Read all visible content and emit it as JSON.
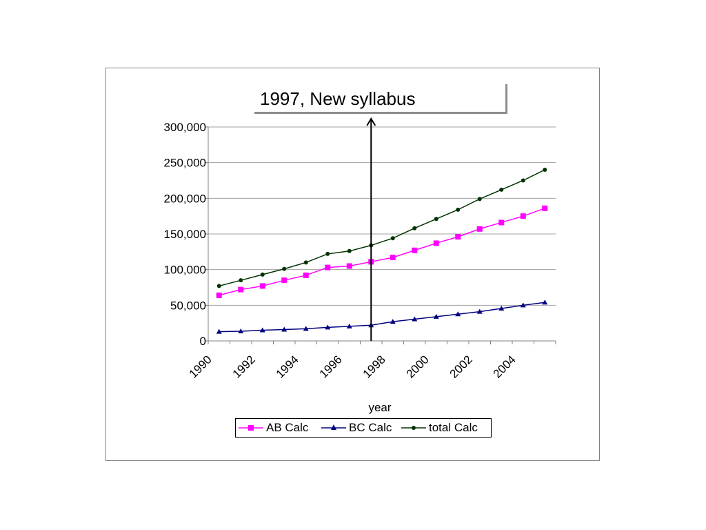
{
  "annotation": {
    "text": "1997, New syllabus",
    "x": 1997
  },
  "chart_data": {
    "type": "line",
    "title": "",
    "xlabel": "year",
    "ylabel": "",
    "xlim": [
      1990,
      2006
    ],
    "ylim": [
      0,
      300000
    ],
    "x_ticks": [
      1990,
      1992,
      1994,
      1996,
      1998,
      2000,
      2002,
      2004
    ],
    "x_tick_labels": [
      "1990",
      "1992",
      "1994",
      "1996",
      "1998",
      "2000",
      "2002",
      "2004"
    ],
    "y_ticks": [
      0,
      50000,
      100000,
      150000,
      200000,
      250000,
      300000
    ],
    "y_tick_labels": [
      "0",
      "50,000",
      "100,000",
      "150,000",
      "200,000",
      "250,000",
      "300,000"
    ],
    "grid": "horizontal",
    "legend_position": "bottom",
    "x": [
      1990,
      1991,
      1992,
      1993,
      1994,
      1995,
      1996,
      1997,
      1998,
      1999,
      2000,
      2001,
      2002,
      2003,
      2004,
      2005
    ],
    "series": [
      {
        "name": "AB Calc",
        "color": "#ff00ff",
        "marker": "square",
        "values": [
          64000,
          72000,
          77000,
          85000,
          92000,
          103000,
          105000,
          111000,
          117000,
          127000,
          137000,
          146000,
          157000,
          166000,
          175000,
          186000
        ]
      },
      {
        "name": "BC Calc",
        "color": "#000080",
        "marker": "triangle",
        "values": [
          13000,
          13500,
          15000,
          16000,
          17000,
          19000,
          20500,
          22000,
          27000,
          30500,
          34000,
          37500,
          41000,
          45500,
          50000,
          54000
        ]
      },
      {
        "name": "total Calc",
        "color": "#003300",
        "marker": "circle",
        "values": [
          77000,
          85000,
          93000,
          101000,
          110000,
          122000,
          126000,
          134000,
          144000,
          158000,
          171000,
          184000,
          199000,
          212000,
          225000,
          240000
        ]
      }
    ]
  }
}
